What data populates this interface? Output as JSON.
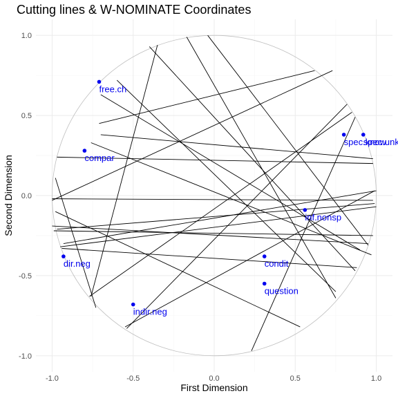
{
  "chart_data": {
    "type": "scatter",
    "title": "Cutting lines & W-NOMINATE Coordinates",
    "xlabel": "First Dimension",
    "ylabel": "Second Dimension",
    "xlim": [
      -1.1,
      1.1
    ],
    "ylim": [
      -1.1,
      1.1
    ],
    "x_ticks": [
      -1.0,
      -0.5,
      0.0,
      0.5,
      1.0
    ],
    "x_tick_labels": [
      "-1.0",
      "-0.5",
      "0.0",
      "0.5",
      "1.0"
    ],
    "y_ticks": [
      -1.0,
      -0.5,
      0.0,
      0.5,
      1.0
    ],
    "y_tick_labels": [
      "-1.0",
      "-0.5",
      "0.0",
      "0.5",
      "1.0"
    ],
    "grid": true,
    "unit_circle": true,
    "point_color": "#0000ee",
    "line_color": "#000000",
    "circle_color": "#bfbfbf",
    "grid_major_color": "#ebebeb",
    "grid_minor_color": "#f5f5f5",
    "points": [
      {
        "label": "free.ch",
        "x": -0.71,
        "y": 0.71
      },
      {
        "label": "compar",
        "x": -0.8,
        "y": 0.28
      },
      {
        "label": "spec.know",
        "x": 0.8,
        "y": 0.38
      },
      {
        "label": "spec.unkn",
        "x": 0.92,
        "y": 0.38
      },
      {
        "label": "inf.nonsp",
        "x": 0.56,
        "y": -0.09
      },
      {
        "label": "dir.neg",
        "x": -0.93,
        "y": -0.38
      },
      {
        "label": "condit",
        "x": 0.31,
        "y": -0.38
      },
      {
        "label": "question",
        "x": 0.31,
        "y": -0.55
      },
      {
        "label": "indir.neg",
        "x": -0.5,
        "y": -0.68
      }
    ],
    "cutting_lines": [
      {
        "x1": -0.71,
        "y1": 0.45,
        "x2": 0.62,
        "y2": 0.78
      },
      {
        "x1": -0.76,
        "y1": 0.33,
        "x2": 0.97,
        "y2": -0.37
      },
      {
        "x1": -0.7,
        "y1": 0.38,
        "x2": 0.98,
        "y2": 0.23
      },
      {
        "x1": -0.97,
        "y1": 0.24,
        "x2": 0.98,
        "y2": 0.2
      },
      {
        "x1": -1.0,
        "y1": -0.02,
        "x2": 0.98,
        "y2": -0.03
      },
      {
        "x1": -0.99,
        "y1": -0.22,
        "x2": 0.98,
        "y2": -0.25
      },
      {
        "x1": -1.0,
        "y1": -0.03,
        "x2": 0.73,
        "y2": 0.78
      },
      {
        "x1": -0.93,
        "y1": -0.3,
        "x2": 1.0,
        "y2": 0.03
      },
      {
        "x1": -0.97,
        "y1": -0.21,
        "x2": 0.99,
        "y2": -0.05
      },
      {
        "x1": -0.95,
        "y1": -0.32,
        "x2": 1.0,
        "y2": -0.07
      },
      {
        "x1": -0.94,
        "y1": -0.33,
        "x2": 0.88,
        "y2": -0.45
      },
      {
        "x1": -1.0,
        "y1": -0.19,
        "x2": 0.95,
        "y2": -0.3
      },
      {
        "x1": -0.98,
        "y1": -0.1,
        "x2": 0.53,
        "y2": -0.82
      },
      {
        "x1": -0.6,
        "y1": 0.72,
        "x2": 0.75,
        "y2": -0.6
      },
      {
        "x1": -0.7,
        "y1": 0.63,
        "x2": 0.9,
        "y2": -0.34
      },
      {
        "x1": -0.4,
        "y1": 0.93,
        "x2": 0.87,
        "y2": -0.47
      },
      {
        "x1": -0.17,
        "y1": 0.99,
        "x2": 0.75,
        "y2": -0.64
      },
      {
        "x1": -0.04,
        "y1": 1.0,
        "x2": 0.95,
        "y2": -0.31
      },
      {
        "x1": -0.98,
        "y1": 0.11,
        "x2": -0.73,
        "y2": -0.7
      },
      {
        "x1": -0.76,
        "y1": -0.63,
        "x2": -0.35,
        "y2": 0.94
      },
      {
        "x1": -0.77,
        "y1": -0.63,
        "x2": 0.85,
        "y2": 0.52
      },
      {
        "x1": -0.54,
        "y1": -0.83,
        "x2": 0.82,
        "y2": 0.57
      },
      {
        "x1": -0.55,
        "y1": -0.82,
        "x2": 0.99,
        "y2": 0.03
      },
      {
        "x1": 0.23,
        "y1": -0.97,
        "x2": 0.87,
        "y2": 0.49
      }
    ]
  }
}
